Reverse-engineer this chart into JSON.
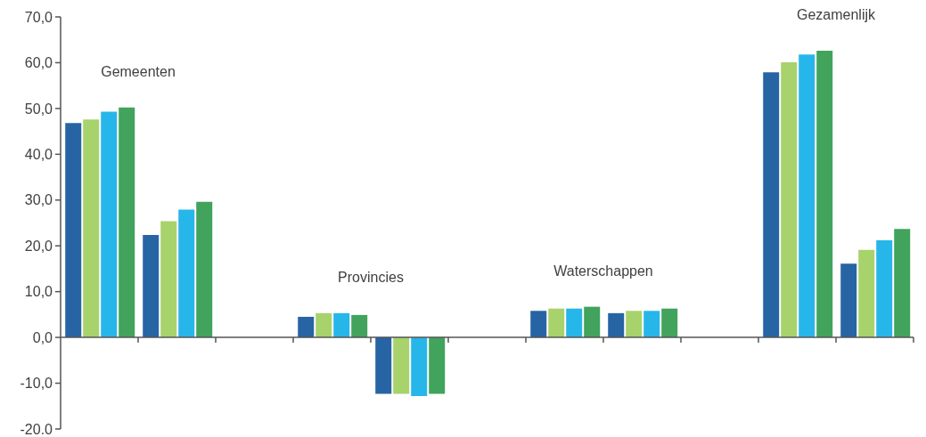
{
  "chart_data": {
    "type": "bar",
    "categories": [
      null,
      null,
      null,
      null,
      null,
      null,
      null,
      null,
      null,
      null,
      null
    ],
    "series": [
      {
        "color": "#2764a4",
        "values": [
          46.8,
          22.4,
          null,
          4.5,
          -12.3,
          null,
          5.8,
          5.3,
          null,
          57.9,
          16.1
        ]
      },
      {
        "color": "#a8d26b",
        "values": [
          47.6,
          25.4,
          null,
          5.3,
          -12.3,
          null,
          6.3,
          5.8,
          null,
          60.1,
          19.1
        ]
      },
      {
        "color": "#27b6e9",
        "values": [
          49.3,
          27.9,
          null,
          5.3,
          -12.8,
          null,
          6.3,
          5.8,
          null,
          61.8,
          21.2
        ]
      },
      {
        "color": "#41a35c",
        "values": [
          50.2,
          29.6,
          null,
          4.9,
          -12.3,
          null,
          6.7,
          6.3,
          null,
          62.6,
          23.7
        ]
      }
    ],
    "ylim": [
      -20,
      70
    ],
    "yticks": [
      {
        "value": 70,
        "label": "70,0"
      },
      {
        "value": 60,
        "label": "60,0"
      },
      {
        "value": 50,
        "label": "50,0"
      },
      {
        "value": 40,
        "label": "40,0"
      },
      {
        "value": 30,
        "label": "30,0"
      },
      {
        "value": 20,
        "label": "20,0"
      },
      {
        "value": 10,
        "label": "10,0"
      },
      {
        "value": 0,
        "label": "0,0"
      },
      {
        "value": -10,
        "label": "-10,0"
      },
      {
        "value": -20,
        "label": "-20.0"
      }
    ],
    "annotations": [
      "Gemeenten",
      "Provincies",
      "Waterschappen",
      "Gezamenlijk"
    ],
    "tick_labels": "y"
  }
}
